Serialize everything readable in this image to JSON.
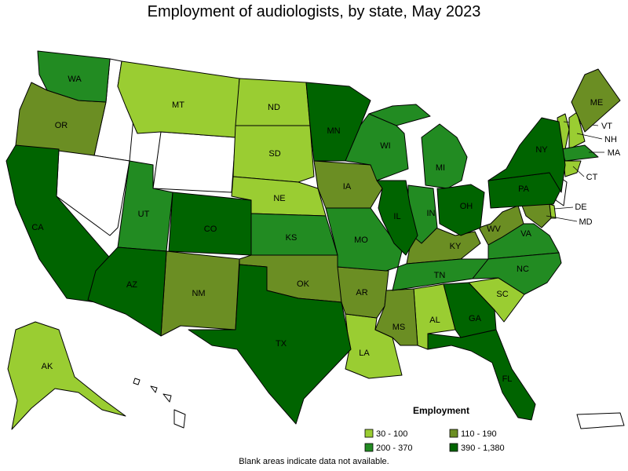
{
  "map_data": {
    "title": "Employment of audiologists, by state, May 2023",
    "legend": {
      "title": "Employment",
      "items": [
        {
          "label": "30 - 100",
          "color": "#9acd32",
          "states": [
            "MT",
            "ND",
            "SD",
            "NE",
            "AK",
            "AL",
            "LA",
            "SC",
            "VT",
            "NH",
            "CT",
            "DE"
          ]
        },
        {
          "label": "110 - 190",
          "color": "#6b8e23",
          "states": [
            "OR",
            "ME",
            "IA",
            "KY",
            "WV",
            "NM",
            "OK",
            "AR",
            "MS",
            "MD"
          ]
        },
        {
          "label": "200 - 370",
          "color": "#228b22",
          "states": [
            "WA",
            "UT",
            "WI",
            "MI",
            "IN",
            "KS",
            "MO",
            "TN",
            "VA",
            "NC",
            "MA"
          ]
        },
        {
          "label": "390 - 1,380",
          "color": "#006400",
          "states": [
            "CA",
            "AZ",
            "CO",
            "TX",
            "MN",
            "IL",
            "OH",
            "PA",
            "NY",
            "GA",
            "FL"
          ]
        }
      ]
    },
    "footnote": "Blank areas indicate data not available."
  }
}
